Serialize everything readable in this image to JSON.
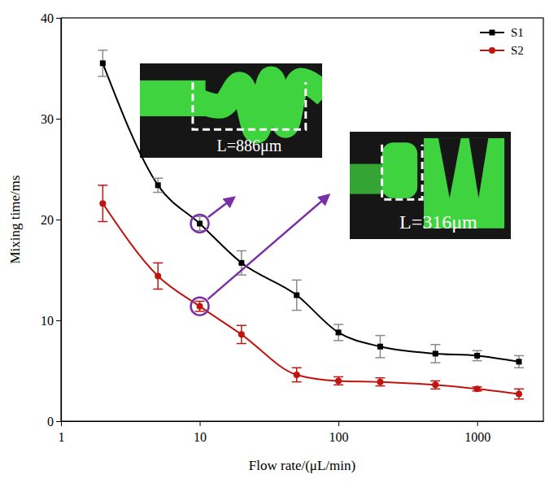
{
  "chart_data": {
    "type": "line",
    "x_label": "Flow rate/(μL/min)",
    "y_label": "Mixing time/ms",
    "x": [
      2,
      5,
      10,
      20,
      50,
      100,
      200,
      500,
      1000,
      2000
    ],
    "series": [
      {
        "name": "S1",
        "color": "#000000",
        "marker": "square",
        "line_style": "solid",
        "values": [
          35.5,
          23.4,
          19.6,
          15.7,
          12.5,
          8.8,
          7.4,
          6.7,
          6.5,
          5.9
        ],
        "errors": [
          1.3,
          0.7,
          0.7,
          1.2,
          1.5,
          0.8,
          1.1,
          0.9,
          0.5,
          0.6
        ]
      },
      {
        "name": "S2",
        "color": "#c0150f",
        "marker": "circle",
        "line_style": "solid",
        "values": [
          21.6,
          14.4,
          11.4,
          8.6,
          4.6,
          4.0,
          3.9,
          3.6,
          3.2,
          2.7
        ],
        "errors": [
          1.8,
          1.3,
          0.5,
          0.9,
          0.7,
          0.4,
          0.4,
          0.4,
          0.2,
          0.5
        ]
      }
    ],
    "xlim": [
      1,
      3000
    ],
    "xticks": [
      1,
      10,
      100,
      1000
    ],
    "ylim": [
      0,
      40
    ],
    "yticks": [
      0,
      10,
      20,
      30,
      40
    ],
    "log": "x",
    "grid": false,
    "legend": "upper right",
    "annotations": [
      {
        "text": "L=886μm",
        "x": 10,
        "y": 19.6
      },
      {
        "text": "L=316μm",
        "x": 10,
        "y": 11.4
      }
    ]
  }
}
